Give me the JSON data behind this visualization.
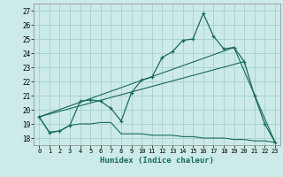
{
  "xlabel": "Humidex (Indice chaleur)",
  "background_color": "#cceae7",
  "grid_color": "#aad4d0",
  "line_color": "#1a6b5a",
  "xlim": [
    -0.5,
    23.5
  ],
  "ylim": [
    17.5,
    27.5
  ],
  "yticks": [
    18,
    19,
    20,
    21,
    22,
    23,
    24,
    25,
    26,
    27
  ],
  "xticks": [
    0,
    1,
    2,
    3,
    4,
    5,
    6,
    7,
    8,
    9,
    10,
    11,
    12,
    13,
    14,
    15,
    16,
    17,
    18,
    19,
    20,
    21,
    22,
    23
  ],
  "line1_x": [
    0,
    1,
    2,
    3,
    4,
    5,
    6,
    7,
    8,
    9,
    10,
    11,
    12,
    13,
    14,
    15,
    16,
    17,
    18,
    19,
    20,
    21,
    22,
    23
  ],
  "line1_y": [
    19.5,
    18.4,
    18.5,
    18.9,
    20.6,
    20.7,
    20.6,
    20.1,
    19.2,
    21.2,
    22.1,
    22.3,
    23.7,
    24.1,
    24.9,
    25.0,
    26.8,
    25.2,
    24.3,
    24.4,
    23.4,
    21.0,
    19.0,
    17.7
  ],
  "line2_x": [
    0,
    1,
    2,
    3,
    4,
    5,
    6,
    7,
    8,
    9,
    10,
    11,
    12,
    13,
    14,
    15,
    16,
    17,
    18,
    19,
    20,
    21,
    22,
    23
  ],
  "line2_y": [
    19.5,
    18.4,
    18.5,
    18.9,
    19.0,
    19.0,
    19.1,
    19.1,
    18.3,
    18.3,
    18.3,
    18.2,
    18.2,
    18.2,
    18.1,
    18.1,
    18.0,
    18.0,
    18.0,
    17.9,
    17.9,
    17.8,
    17.8,
    17.7
  ],
  "line3_x": [
    0,
    20
  ],
  "line3_y": [
    19.5,
    23.4
  ],
  "line4_x": [
    0,
    19,
    23
  ],
  "line4_y": [
    19.5,
    24.4,
    17.7
  ]
}
